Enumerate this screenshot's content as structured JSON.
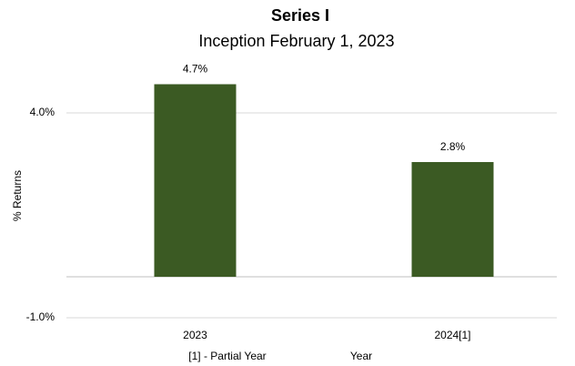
{
  "chart_data": {
    "type": "bar",
    "title": "Series I",
    "subtitle": "Inception February 1, 2023",
    "y_axis_label": "% Returns",
    "x_axis_label": "Year",
    "annotation": "[1] - Partial Year",
    "categories": [
      "2023",
      "2024[1]"
    ],
    "values": [
      4.7,
      2.8
    ],
    "value_labels": [
      "4.7%",
      "2.8%"
    ],
    "color": "#3b5a23",
    "ylim": [
      -1,
      5
    ],
    "yticks": [
      {
        "value": -1.0,
        "label": "-1.0%"
      },
      {
        "value": 4.0,
        "label": "4.0%"
      }
    ],
    "grid": true
  }
}
